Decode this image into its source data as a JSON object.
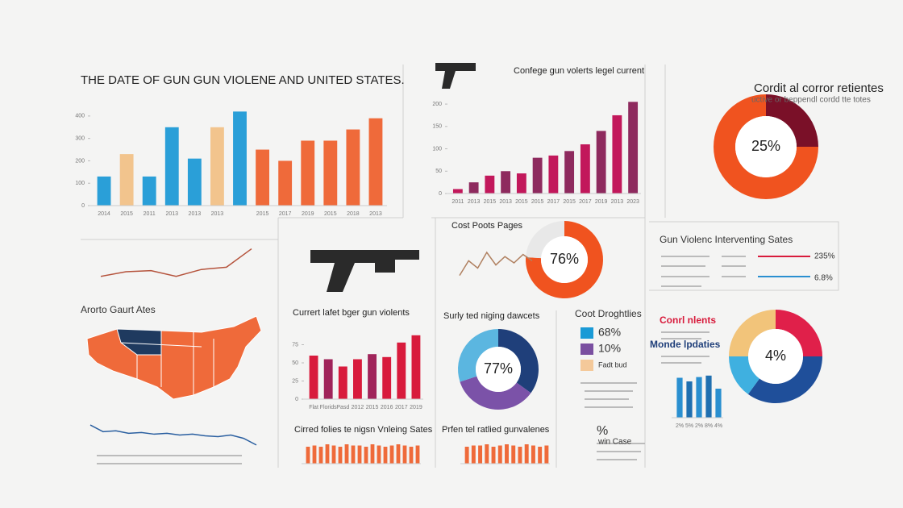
{
  "chart_data": [
    {
      "type": "bar",
      "title": "THE DATE OF GUN GUN VIOLENE AND UNITED STATES.",
      "categories": [
        "2014",
        "2015",
        "2011",
        "2013",
        "2013",
        "2013",
        null,
        "2015",
        "2017",
        "2019",
        "2015",
        "2018",
        "2013"
      ],
      "values": [
        130,
        230,
        130,
        350,
        210,
        350,
        420,
        250,
        200,
        290,
        290,
        340,
        390
      ],
      "colors": [
        "#2a9fd8",
        "#f2c48d",
        "#2a9fd8",
        "#2a9fd8",
        "#2a9fd8",
        "#f2c48d",
        "#2a9fd8",
        "#ef6a3a",
        "#ef6a3a",
        "#ef6a3a",
        "#ef6a3a",
        "#ef6a3a",
        "#ef6a3a"
      ],
      "ylim": [
        0,
        450
      ],
      "yticks": [
        0,
        100,
        200,
        300,
        400
      ]
    },
    {
      "type": "bar",
      "title": "Confege gun volerts legel current",
      "categories": [
        "2011",
        "2013",
        "2015",
        "2013",
        "2015",
        "2015",
        "2017",
        "2015",
        "2017",
        "2019",
        "2013",
        "2023"
      ],
      "values": [
        10,
        25,
        40,
        50,
        45,
        80,
        85,
        95,
        110,
        140,
        175,
        205
      ],
      "colors": [
        "#c2185b",
        "#8e2a5e",
        "#c2185b",
        "#8e2a5e",
        "#c2185b",
        "#8e2a5e",
        "#c2185b",
        "#8e2a5e",
        "#c2185b",
        "#8e2a5e",
        "#c2185b",
        "#8e2a5e"
      ],
      "ylim": [
        0,
        220
      ],
      "yticks": [
        0,
        50,
        100,
        150,
        200
      ]
    },
    {
      "type": "donut",
      "title": "Cordit al corror retientes",
      "subtitle": "uctive or beppendl cordd tte totes",
      "values": [
        25,
        75
      ],
      "colors": [
        "#7a1028",
        "#f0531f"
      ],
      "center_text": "25%"
    },
    {
      "type": "line",
      "values": [
        10,
        14,
        15,
        10,
        16,
        18,
        34
      ],
      "color": "#b5533c",
      "ylim": [
        0,
        40
      ]
    },
    {
      "type": "donut",
      "title": "Cost Poots Pages",
      "values": [
        76,
        24
      ],
      "colors": [
        "#f0531f",
        "#e8e8e8"
      ],
      "center_text": "76%"
    },
    {
      "type": "line",
      "values": [
        8,
        22,
        15,
        30,
        18,
        26,
        20,
        28,
        22
      ],
      "color": "#b08060",
      "ylim": [
        0,
        40
      ]
    },
    {
      "type": "bar",
      "title": "Currert lafet bger gun violents",
      "categories": [
        "Flat",
        "Florids",
        "Pasd",
        "2012",
        "2015",
        "2016",
        "2017",
        "2019"
      ],
      "values": [
        60,
        55,
        45,
        55,
        62,
        58,
        78,
        88
      ],
      "colors": [
        "#d81b3c",
        "#a0245a",
        "#d81b3c",
        "#d81b3c",
        "#a0245a",
        "#d81b3c",
        "#d81b3c",
        "#d81b3c"
      ],
      "ylim": [
        0,
        100
      ],
      "yticks": [
        0,
        25,
        50,
        75
      ]
    },
    {
      "type": "donut",
      "title": "Surly ted niging dawcets",
      "values": [
        35,
        35,
        30
      ],
      "colors": [
        "#1f3f7a",
        "#7b52a8",
        "#5bb6e0"
      ],
      "center_text": "77%"
    },
    {
      "type": "donut",
      "values": [
        25,
        35,
        15,
        25
      ],
      "colors": [
        "#e0204a",
        "#1f4f9a",
        "#3fb0e0",
        "#f2c47a"
      ],
      "center_text": "4%"
    },
    {
      "type": "bar",
      "categories": [
        "2%",
        "5%",
        "2%",
        "8%",
        "4%"
      ],
      "values": [
        55,
        50,
        56,
        58,
        40
      ],
      "colors": [
        "#2a8fd0",
        "#1f6fb0",
        "#2a8fd0",
        "#1f6fb0",
        "#2a8fd0"
      ],
      "ylim": [
        0,
        70
      ]
    },
    {
      "type": "line",
      "values": [
        28,
        20,
        21,
        18,
        19,
        17,
        18,
        16,
        17,
        15,
        14,
        16,
        12,
        4
      ],
      "color": "#2a5fa0",
      "ylim": [
        0,
        30
      ]
    },
    {
      "type": "bar",
      "title": "Cirred folies te nigsn Vnleing Sates",
      "values": [
        14,
        15,
        14,
        16,
        15,
        14,
        16,
        15,
        15,
        14,
        16,
        15,
        14,
        15,
        16,
        15,
        14,
        15
      ],
      "color": "#ef6a3a",
      "ylim": [
        0,
        18
      ]
    },
    {
      "type": "bar",
      "title": "Prfen tel ratlied gunvalenes",
      "values": [
        14,
        15,
        15,
        16,
        14,
        15,
        16,
        15,
        14,
        16,
        15,
        14,
        15
      ],
      "color": "#ef6a3a",
      "ylim": [
        0,
        18
      ]
    }
  ],
  "texts": {
    "map_title": "Arorto Gaurt Ates",
    "panel_title": "Gun Violenc Interventing Sates",
    "stat_a": "235%",
    "stat_b": "6.8%",
    "red_head": "Conrl nlents",
    "blue_head": "Monde lpdaties",
    "pct": "%",
    "case": "win Case"
  },
  "legend": {
    "title": "Coot Droghtlies",
    "items": [
      {
        "label": "68%",
        "color": "#1a9ad6"
      },
      {
        "label": "10%",
        "color": "#7a4fa0"
      },
      {
        "label": "Fadt bud",
        "color": "#f4c99a"
      }
    ]
  }
}
